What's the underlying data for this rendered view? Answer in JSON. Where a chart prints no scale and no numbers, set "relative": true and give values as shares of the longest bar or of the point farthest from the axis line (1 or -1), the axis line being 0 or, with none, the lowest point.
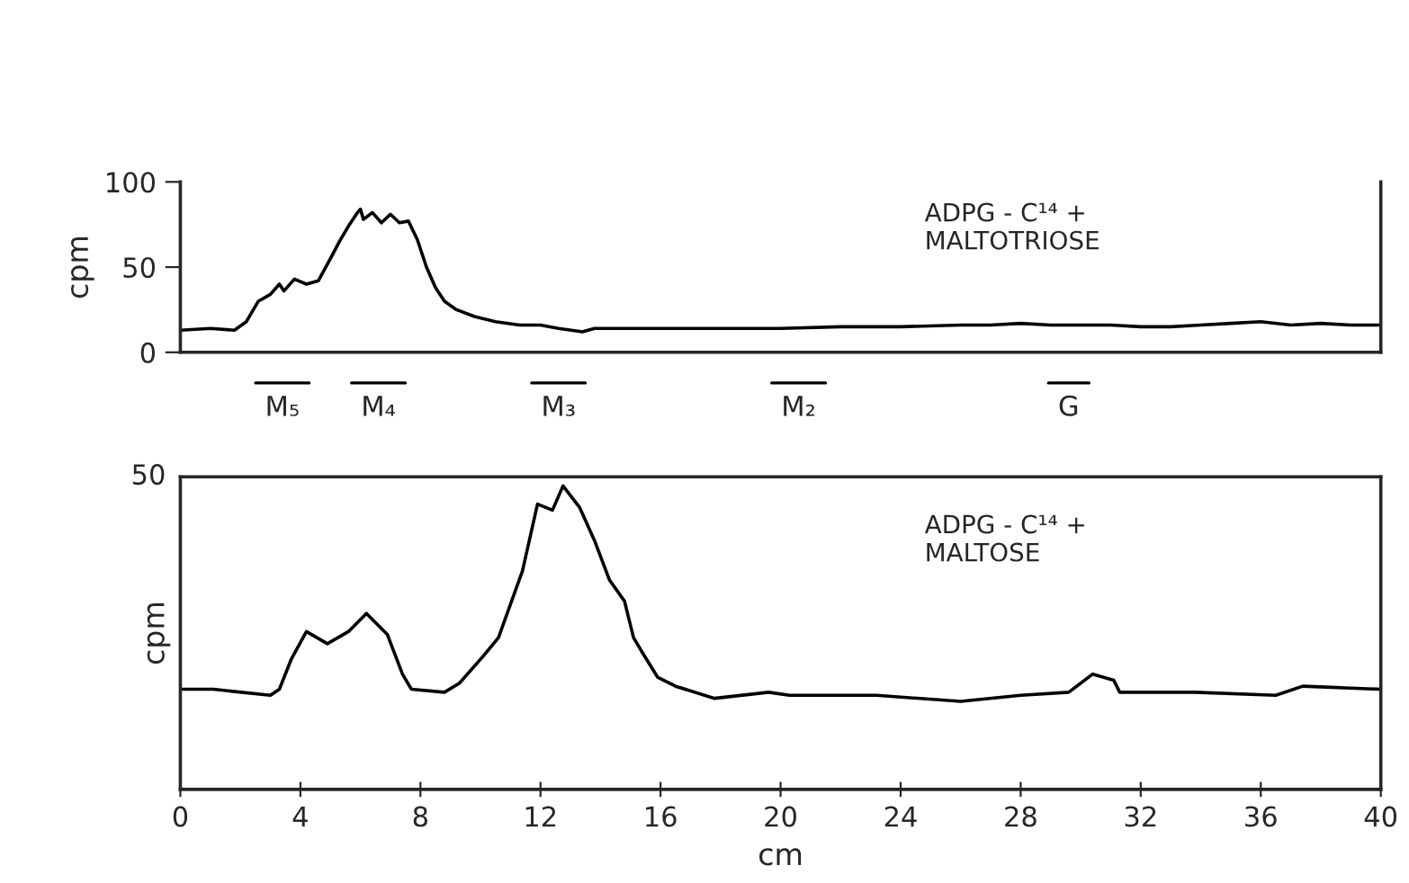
{
  "chart_data": [
    {
      "type": "line",
      "ylabel": "cpm",
      "xlim": [
        0,
        40
      ],
      "ylim": [
        0,
        100
      ],
      "yticks": [
        0,
        50,
        100
      ],
      "tick_labels": "y",
      "grid": false,
      "legend": false,
      "annotations": [
        "ADPG - C¹⁴ +\nMALTOTRIOSE",
        "M₅",
        "M₄",
        "M₃",
        "M₂",
        "G"
      ],
      "series": [
        {
          "color": "#000000",
          "x": [
            0,
            1,
            1.8,
            2.2,
            2.6,
            3,
            3.3,
            3.45,
            3.8,
            4.2,
            4.6,
            5,
            5.3,
            5.6,
            5.9,
            6,
            6.1,
            6.4,
            6.7,
            7,
            7.3,
            7.6,
            7.9,
            8.2,
            8.5,
            8.8,
            9.2,
            9.8,
            10.5,
            11.3,
            12,
            12.6,
            13.4,
            13.8,
            15,
            17,
            19,
            20,
            22,
            24,
            26,
            27,
            28,
            29,
            30,
            31,
            32,
            33,
            34,
            35,
            36,
            37,
            38,
            39,
            40
          ],
          "values": [
            13,
            14,
            13,
            18,
            30,
            34,
            40,
            36,
            43,
            40,
            42,
            55,
            65,
            74,
            82,
            84,
            78,
            82,
            76,
            81,
            76,
            77,
            66,
            50,
            38,
            30,
            25,
            21,
            18,
            16,
            16,
            14,
            12,
            14,
            14,
            14,
            14,
            14,
            15,
            15,
            16,
            16,
            17,
            16,
            16,
            16,
            15,
            15,
            16,
            17,
            18,
            16,
            17,
            16,
            16
          ]
        }
      ]
    },
    {
      "type": "line",
      "relative": true,
      "xlabel": "cm",
      "ylabel": "cpm",
      "xlim": [
        0,
        40
      ],
      "xticks": [
        0,
        4,
        8,
        12,
        16,
        20,
        24,
        28,
        32,
        36,
        40
      ],
      "grid": false,
      "legend": false,
      "annotations": [
        "ADPG - C¹⁴ +\nMALTOSE",
        "50"
      ],
      "series": [
        {
          "color": "#000000",
          "x": [
            0,
            1.1,
            3,
            3.3,
            3.7,
            4.2,
            4.9,
            5.6,
            6.2,
            6.9,
            7.4,
            7.7,
            8.8,
            9.3,
            10.1,
            10.6,
            11.4,
            11.9,
            12.4,
            12.75,
            13.3,
            13.8,
            14.3,
            14.8,
            15.1,
            15.4,
            15.9,
            16.5,
            17.8,
            19.6,
            20.3,
            23.2,
            26,
            28,
            29.6,
            30.4,
            31.1,
            31.3,
            33.8,
            36.5,
            37.4,
            40
          ],
          "values": [
            0.33,
            0.33,
            0.31,
            0.33,
            0.43,
            0.52,
            0.48,
            0.52,
            0.58,
            0.51,
            0.38,
            0.33,
            0.32,
            0.35,
            0.44,
            0.5,
            0.72,
            0.94,
            0.92,
            1,
            0.93,
            0.82,
            0.69,
            0.62,
            0.5,
            0.45,
            0.37,
            0.34,
            0.3,
            0.32,
            0.31,
            0.31,
            0.29,
            0.31,
            0.32,
            0.38,
            0.36,
            0.32,
            0.32,
            0.31,
            0.34,
            0.33
          ]
        }
      ]
    }
  ]
}
